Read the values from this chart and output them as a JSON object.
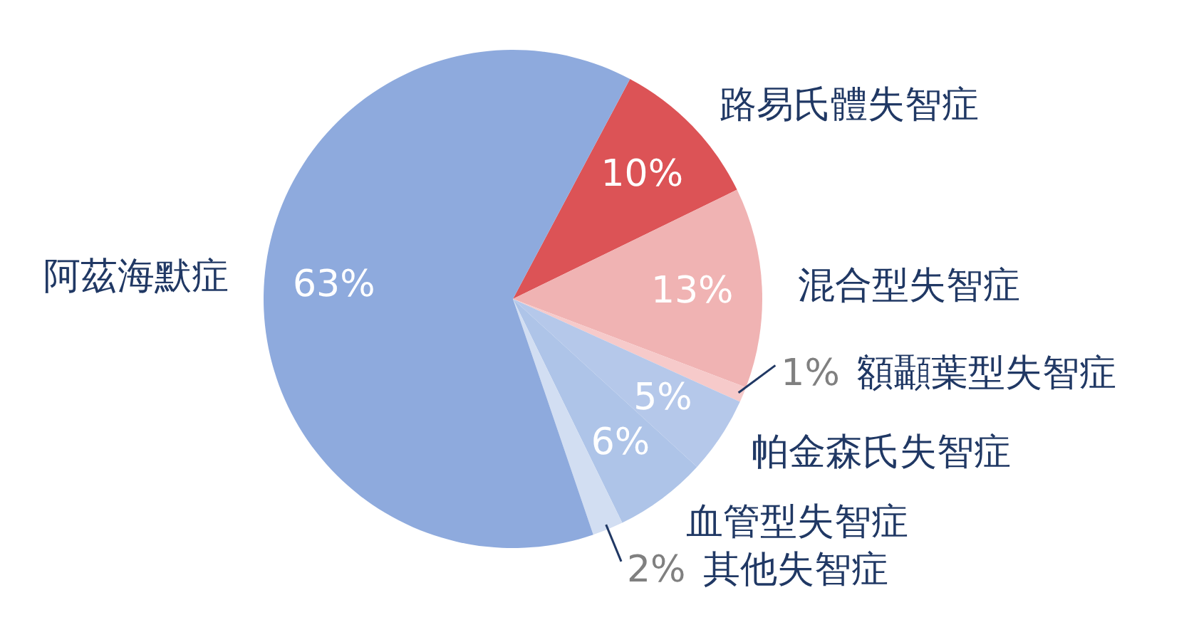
{
  "chart_data": {
    "type": "pie",
    "categories": [
      "路易氏體失智症",
      "混合型失智症",
      "額顳葉型失智症",
      "帕金森氏失智症",
      "血管型失智症",
      "其他失智症",
      "阿茲海默症"
    ],
    "values": [
      10,
      13,
      1,
      5,
      6,
      2,
      63
    ],
    "value_labels": [
      "10%",
      "13%",
      "1%",
      "5%",
      "6%",
      "2%",
      "63%"
    ],
    "colors": [
      "#dc5356",
      "#f0b3b3",
      "#f6caca",
      "#b5c8ea",
      "#aec4e8",
      "#d2def2",
      "#8eaadd"
    ]
  }
}
